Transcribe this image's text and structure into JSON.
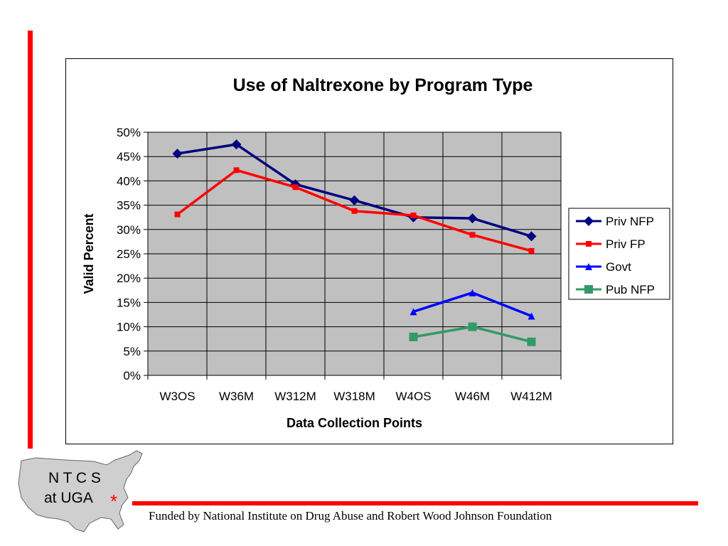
{
  "chart_data": {
    "type": "line",
    "title": "Use of Naltrexone by Program Type",
    "xlabel": "Data Collection Points",
    "ylabel": "Valid Percent",
    "categories": [
      "W3OS",
      "W36M",
      "W312M",
      "W318M",
      "W4OS",
      "W46M",
      "W412M"
    ],
    "ylim": [
      0,
      50
    ],
    "ytick_step": 5,
    "ytick_format": "percent",
    "grid": true,
    "plot_background": "#c0c0c0",
    "legend_position": "right",
    "series": [
      {
        "name": "Priv NFP",
        "color": "#000080",
        "marker": "diamond",
        "values": [
          45.6,
          47.5,
          39.3,
          36.0,
          32.5,
          32.3,
          28.6
        ]
      },
      {
        "name": "Priv FP",
        "color": "#ff0000",
        "marker": "square-small",
        "values": [
          33.1,
          42.2,
          38.7,
          33.8,
          32.9,
          28.9,
          25.6
        ]
      },
      {
        "name": "Govt",
        "color": "#0000ff",
        "marker": "triangle",
        "values": [
          null,
          null,
          null,
          null,
          13.1,
          17.0,
          12.2
        ]
      },
      {
        "name": "Pub NFP",
        "color": "#339966",
        "marker": "square",
        "values": [
          null,
          null,
          null,
          null,
          7.9,
          10.0,
          6.9
        ]
      }
    ]
  },
  "footer": {
    "funding_text": "Funded by National Institute on Drug Abuse and Robert Wood Johnson Foundation",
    "logo_line1": "N T C S",
    "logo_line2": "at UGA",
    "logo_star": "*"
  }
}
